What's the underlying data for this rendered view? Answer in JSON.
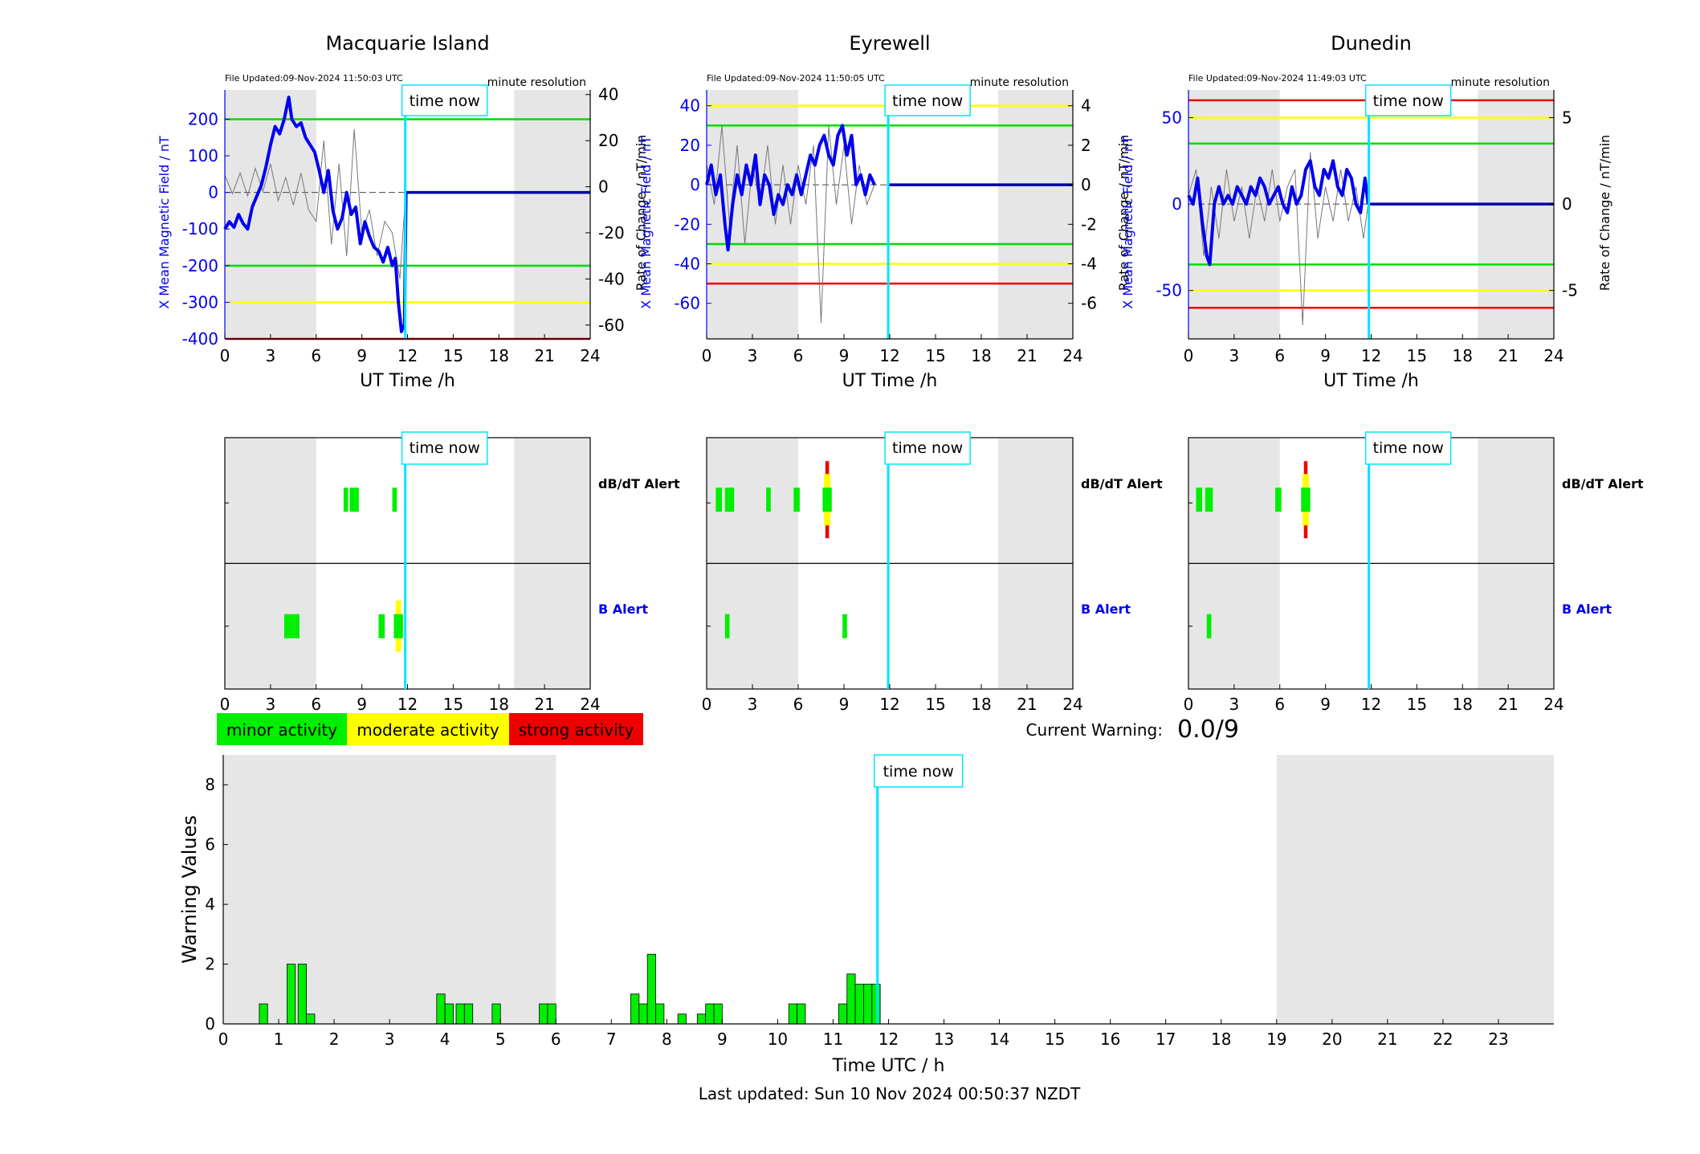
{
  "chart_data": {
    "type": "multi-panel",
    "stations": [
      {
        "name": "Macquarie Island",
        "file_updated": "File Updated:09-Nov-2024 11:50:03 UTC",
        "resolution": "minute resolution",
        "ylabel_left": "X Mean Magnetic Field / nT",
        "ylabel_right": "Rate of Change / nT/min",
        "xlabel": "UT Time /h",
        "ylim_left": [
          -400,
          280
        ],
        "yticks_left": [
          200,
          100,
          0,
          -100,
          -200,
          -300,
          -400
        ],
        "ylim_right": [
          -66,
          42
        ],
        "yticks_right": [
          40,
          20,
          0,
          -20,
          -40,
          -60
        ],
        "thresholds": [
          {
            "value": 200,
            "color": "#00dd00"
          },
          {
            "value": -200,
            "color": "#00dd00"
          },
          {
            "value": -300,
            "color": "#ffff00"
          },
          {
            "value": -400,
            "color": "#ee0000"
          }
        ],
        "night_shade": [
          [
            0,
            6
          ],
          [
            19,
            24
          ]
        ],
        "current_time": 11.85,
        "x_field": [
          0,
          0.3,
          0.6,
          0.9,
          1.2,
          1.5,
          1.8,
          2.1,
          2.4,
          2.7,
          3.0,
          3.3,
          3.6,
          3.9,
          4.2,
          4.4,
          4.7,
          5.0,
          5.3,
          5.6,
          5.9,
          6.2,
          6.5,
          6.8,
          7.1,
          7.4,
          7.7,
          8.0,
          8.3,
          8.6,
          8.9,
          9.2,
          9.5,
          9.8,
          10.1,
          10.4,
          10.7,
          11.0,
          11.2,
          11.4,
          11.6,
          11.8,
          11.9
        ],
        "y_field": [
          -100,
          -80,
          -95,
          -60,
          -85,
          -100,
          -40,
          -10,
          20,
          70,
          130,
          180,
          160,
          200,
          260,
          200,
          180,
          190,
          150,
          130,
          110,
          60,
          0,
          60,
          -50,
          -100,
          -70,
          0,
          -60,
          -40,
          -140,
          -80,
          -120,
          -150,
          -160,
          -190,
          -150,
          -200,
          -180,
          -300,
          -380,
          -360,
          0
        ],
        "x_rate": [
          0,
          0.5,
          1,
          1.5,
          2,
          2.5,
          3,
          3.5,
          4,
          4.5,
          5,
          5.5,
          6,
          6.5,
          7,
          7.5,
          8,
          8.5,
          9,
          9.5,
          10,
          10.5,
          11,
          11.5,
          11.9
        ],
        "y_rate": [
          5,
          -3,
          6,
          -4,
          8,
          -2,
          10,
          -6,
          4,
          -8,
          6,
          -10,
          -15,
          20,
          -25,
          10,
          -30,
          25,
          -20,
          -10,
          -30,
          -15,
          -20,
          -40,
          0
        ],
        "dbdt_alert_bars": [
          {
            "x": 7.8,
            "w": 0.3,
            "level": "minor"
          },
          {
            "x": 8.2,
            "w": 0.6,
            "level": "minor"
          },
          {
            "x": 11.0,
            "w": 0.3,
            "level": "minor"
          }
        ],
        "b_alert_bars": [
          {
            "x": 3.9,
            "w": 0.7,
            "level": "minor"
          },
          {
            "x": 4.6,
            "w": 0.3,
            "level": "minor"
          },
          {
            "x": 10.1,
            "w": 0.4,
            "level": "minor"
          },
          {
            "x": 11.1,
            "w": 0.6,
            "level": "moderate"
          }
        ]
      },
      {
        "name": "Eyrewell",
        "file_updated": "File Updated:09-Nov-2024 11:50:05 UTC",
        "resolution": "minute resolution",
        "ylabel_left": "X Mean Magnetic Field / nT",
        "ylabel_right": "Rate of Change / nT/min",
        "xlabel": "UT Time /h",
        "ylim_left": [
          -78,
          48
        ],
        "yticks_left": [
          40,
          20,
          0,
          -20,
          -40,
          -60
        ],
        "ylim_right": [
          -7.8,
          4.8
        ],
        "yticks_right": [
          4,
          2,
          0,
          -2,
          -4,
          -6
        ],
        "thresholds": [
          {
            "value": 40,
            "color": "#ffff00"
          },
          {
            "value": 30,
            "color": "#00dd00"
          },
          {
            "value": -30,
            "color": "#00dd00"
          },
          {
            "value": -40,
            "color": "#ffff00"
          },
          {
            "value": -50,
            "color": "#ee0000"
          }
        ],
        "night_shade": [
          [
            0,
            6
          ],
          [
            19.1,
            24
          ]
        ],
        "current_time": 11.9,
        "x_field": [
          0,
          0.3,
          0.6,
          0.9,
          1.2,
          1.4,
          1.7,
          2.0,
          2.3,
          2.6,
          2.9,
          3.2,
          3.5,
          3.8,
          4.1,
          4.4,
          4.7,
          5.0,
          5.3,
          5.6,
          5.9,
          6.2,
          6.5,
          6.8,
          7.1,
          7.4,
          7.7,
          8.0,
          8.3,
          8.6,
          8.9,
          9.2,
          9.5,
          9.8,
          10.1,
          10.4,
          10.7,
          11.0
        ],
        "y_field": [
          0,
          10,
          -5,
          5,
          -20,
          -33,
          -10,
          5,
          -5,
          10,
          0,
          15,
          -10,
          5,
          0,
          -15,
          -5,
          -10,
          0,
          -5,
          5,
          -5,
          5,
          15,
          10,
          20,
          25,
          15,
          10,
          25,
          30,
          15,
          25,
          0,
          5,
          -5,
          5,
          0
        ],
        "x_rate": [
          0,
          0.5,
          1,
          1.5,
          2,
          2.5,
          3,
          3.5,
          4,
          4.5,
          5,
          5.5,
          6,
          6.5,
          7,
          7.5,
          8,
          8.5,
          9,
          9.5,
          10,
          10.5,
          11
        ],
        "y_rate": [
          1,
          -1,
          3,
          -2,
          2,
          -3,
          1,
          -1,
          2,
          -2,
          1,
          -2,
          1,
          -1,
          2,
          -7,
          3,
          -1,
          2,
          -2,
          1,
          -1,
          0
        ],
        "dbdt_alert_bars": [
          {
            "x": 0.6,
            "w": 0.4,
            "level": "minor"
          },
          {
            "x": 1.2,
            "w": 0.6,
            "level": "minor"
          },
          {
            "x": 3.9,
            "w": 0.3,
            "level": "minor"
          },
          {
            "x": 5.7,
            "w": 0.4,
            "level": "minor"
          },
          {
            "x": 7.6,
            "w": 0.6,
            "level": "strong"
          }
        ],
        "b_alert_bars": [
          {
            "x": 1.2,
            "w": 0.3,
            "level": "minor"
          },
          {
            "x": 8.9,
            "w": 0.3,
            "level": "minor"
          }
        ]
      },
      {
        "name": "Dunedin",
        "file_updated": "File Updated:09-Nov-2024 11:49:03 UTC",
        "resolution": "minute resolution",
        "ylabel_left": "X Mean Magnetic Field / nT",
        "ylabel_right": "Rate of Change / nT/min",
        "xlabel": "UT Time /h",
        "ylim_left": [
          -78,
          66
        ],
        "yticks_left": [
          50,
          0,
          -50
        ],
        "ylim_right": [
          -7.8,
          6.6
        ],
        "yticks_right": [
          5,
          0,
          -5
        ],
        "thresholds": [
          {
            "value": 60,
            "color": "#ee0000"
          },
          {
            "value": 50,
            "color": "#ffff00"
          },
          {
            "value": 35,
            "color": "#00dd00"
          },
          {
            "value": -35,
            "color": "#00dd00"
          },
          {
            "value": -50,
            "color": "#ffff00"
          },
          {
            "value": -60,
            "color": "#ee0000"
          }
        ],
        "night_shade": [
          [
            0,
            6
          ],
          [
            19,
            24
          ]
        ],
        "current_time": 11.85,
        "x_field": [
          0,
          0.3,
          0.6,
          0.9,
          1.2,
          1.4,
          1.7,
          2.0,
          2.3,
          2.6,
          2.9,
          3.2,
          3.5,
          3.8,
          4.1,
          4.4,
          4.7,
          5.0,
          5.3,
          5.6,
          5.9,
          6.2,
          6.5,
          6.8,
          7.1,
          7.4,
          7.7,
          8.0,
          8.3,
          8.6,
          8.9,
          9.2,
          9.5,
          9.8,
          10.1,
          10.4,
          10.7,
          11.0,
          11.3,
          11.6,
          11.8
        ],
        "y_field": [
          5,
          0,
          15,
          -10,
          -30,
          -35,
          0,
          10,
          0,
          5,
          0,
          10,
          5,
          0,
          10,
          5,
          15,
          10,
          0,
          5,
          10,
          0,
          -5,
          10,
          0,
          5,
          20,
          25,
          10,
          5,
          20,
          15,
          25,
          10,
          5,
          20,
          15,
          0,
          -5,
          15,
          0
        ],
        "x_rate": [
          0,
          0.5,
          1,
          1.5,
          2,
          2.5,
          3,
          3.5,
          4,
          4.5,
          5,
          5.5,
          6,
          6.5,
          7,
          7.5,
          8,
          8.5,
          9,
          9.5,
          10,
          10.5,
          11,
          11.5,
          11.8
        ],
        "y_rate": [
          0.5,
          2,
          -3,
          1,
          -2,
          2,
          -1,
          1,
          -2,
          1,
          -1,
          2,
          -1,
          1,
          2,
          -7,
          3,
          -2,
          1,
          -1,
          2,
          -1,
          1,
          -2,
          0
        ],
        "dbdt_alert_bars": [
          {
            "x": 0.5,
            "w": 0.4,
            "level": "minor"
          },
          {
            "x": 1.1,
            "w": 0.5,
            "level": "minor"
          },
          {
            "x": 5.7,
            "w": 0.4,
            "level": "minor"
          },
          {
            "x": 7.4,
            "w": 0.6,
            "level": "strong"
          }
        ],
        "b_alert_bars": [
          {
            "x": 1.2,
            "w": 0.3,
            "level": "minor"
          }
        ]
      }
    ],
    "time_now_label": "time now",
    "alert_labels": {
      "dbdt": "dB/dT Alert",
      "b": "B Alert"
    },
    "alert_xticks": [
      0,
      3,
      6,
      9,
      12,
      15,
      18,
      21,
      24
    ],
    "legend": [
      {
        "label": "minor activity",
        "color": "#00ee00"
      },
      {
        "label": "moderate activity",
        "color": "#ffff00"
      },
      {
        "label": "strong activity",
        "color": "#ee0000"
      }
    ],
    "current_warning_label": "Current Warning:",
    "current_warning_value": "0.0/9",
    "warning": {
      "type": "bar",
      "ylabel": "Warning Values",
      "xlabel": "Time UTC / h",
      "ylim": [
        0,
        9
      ],
      "yticks": [
        0,
        2,
        4,
        6,
        8
      ],
      "xticks": [
        0,
        1,
        2,
        3,
        4,
        5,
        6,
        7,
        8,
        9,
        10,
        11,
        12,
        13,
        14,
        15,
        16,
        17,
        18,
        19,
        20,
        21,
        22,
        23
      ],
      "xlim": [
        0,
        24
      ],
      "night_shade": [
        [
          0,
          6
        ],
        [
          19,
          24
        ]
      ],
      "current_time": 11.8,
      "bars": [
        {
          "x": 0.65,
          "v": 0.67
        },
        {
          "x": 1.15,
          "v": 2
        },
        {
          "x": 1.35,
          "v": 2
        },
        {
          "x": 1.5,
          "v": 0.33
        },
        {
          "x": 3.85,
          "v": 1
        },
        {
          "x": 4.0,
          "v": 0.67
        },
        {
          "x": 4.2,
          "v": 0.67
        },
        {
          "x": 4.35,
          "v": 0.67
        },
        {
          "x": 4.85,
          "v": 0.67
        },
        {
          "x": 5.7,
          "v": 0.67
        },
        {
          "x": 5.85,
          "v": 0.67
        },
        {
          "x": 7.35,
          "v": 1
        },
        {
          "x": 7.5,
          "v": 0.67
        },
        {
          "x": 7.65,
          "v": 2.33
        },
        {
          "x": 7.8,
          "v": 0.67
        },
        {
          "x": 8.2,
          "v": 0.33
        },
        {
          "x": 8.55,
          "v": 0.33
        },
        {
          "x": 8.7,
          "v": 0.67
        },
        {
          "x": 8.85,
          "v": 0.67
        },
        {
          "x": 10.2,
          "v": 0.67
        },
        {
          "x": 10.35,
          "v": 0.67
        },
        {
          "x": 11.1,
          "v": 0.67
        },
        {
          "x": 11.25,
          "v": 1.67
        },
        {
          "x": 11.4,
          "v": 1.33
        },
        {
          "x": 11.55,
          "v": 1.33
        },
        {
          "x": 11.7,
          "v": 1.33
        }
      ]
    },
    "footer": "Last updated: Sun 10 Nov 2024 00:50:37 NZDT"
  }
}
